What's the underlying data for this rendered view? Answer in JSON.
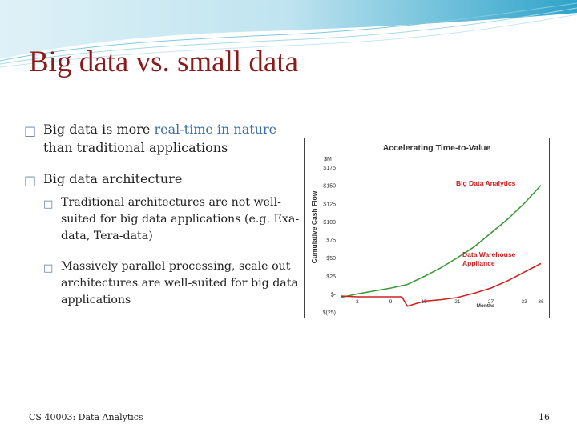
{
  "slide": {
    "title": "Big data vs. small data",
    "bullets": [
      {
        "text_before": "Big data is more ",
        "highlight": "real-time in nature",
        "text_after": " than traditional applications"
      },
      {
        "text": "Big data architecture",
        "sub": [
          "Traditional architectures are not well-suited for big data applications (e.g. Exa-data, Tera-data)",
          "Massively parallel processing, scale out architectures are well-suited for big data applications"
        ]
      }
    ],
    "footer_left": "CS 40003: Data Analytics",
    "page_number": "16",
    "colors": {
      "title": "#8b1a1a",
      "highlight": "#3f6fa6",
      "bullet": "#5d7fa3"
    }
  },
  "chart_data": {
    "type": "line",
    "title": "Accelerating Time-to-Value",
    "ylabel": "Cumulative Cash Flow",
    "xlabel": "Months",
    "y_unit": "$M",
    "y_ticks": [
      "$175",
      "$150",
      "$125",
      "$100",
      "$75",
      "$50",
      "$25",
      "$-",
      "$(25)"
    ],
    "x_ticks": [
      "3",
      "9",
      "15",
      "21",
      "27",
      "33",
      "36"
    ],
    "ylim": [
      -25,
      175
    ],
    "xlim": [
      0,
      36
    ],
    "series": [
      {
        "name": "Big Data Analytics",
        "color": "#3a9a3a",
        "x": [
          0,
          3,
          6,
          9,
          12,
          15,
          18,
          21,
          24,
          27,
          30,
          33,
          36
        ],
        "y": [
          -5,
          0,
          4,
          8,
          13,
          24,
          36,
          50,
          65,
          84,
          103,
          125,
          150
        ]
      },
      {
        "name": "Data Warehouse Appliance",
        "color": "#cc2222",
        "x": [
          0,
          3,
          6,
          9,
          11,
          12,
          15,
          18,
          21,
          24,
          27,
          30,
          33,
          36
        ],
        "y": [
          -3,
          -4,
          -4,
          -4,
          -4,
          -17,
          -10,
          -8,
          -5,
          1,
          8,
          18,
          30,
          42
        ]
      }
    ]
  }
}
